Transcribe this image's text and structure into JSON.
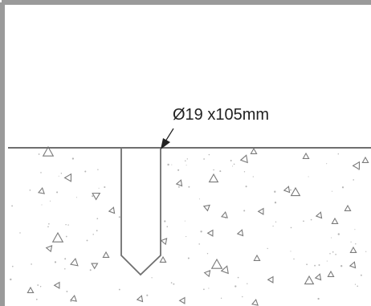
{
  "diagram": {
    "drill_hole_label": "Ø19 x105mm",
    "colors": {
      "frame": "#9a9a9a",
      "line": "#6f6f6f",
      "aggregate": "#7a7a7a",
      "dots": "#b5b5b5",
      "text": "#222222",
      "background": "#ffffff"
    }
  }
}
